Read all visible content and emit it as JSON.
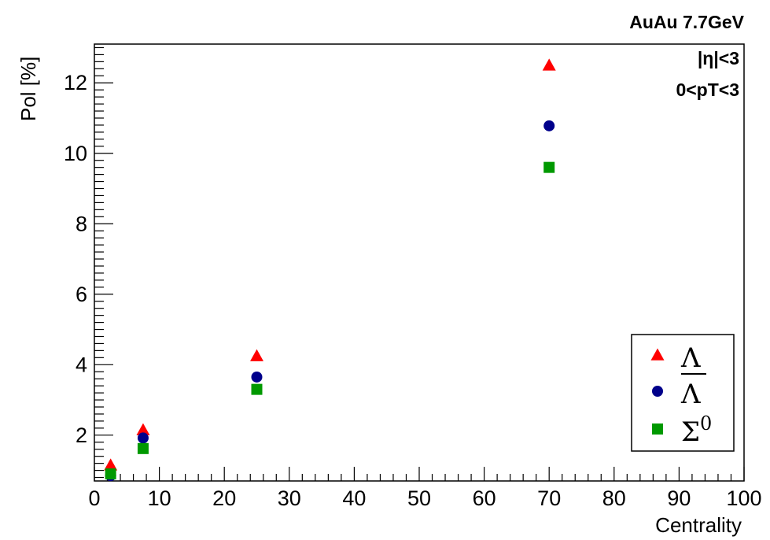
{
  "chart_data": {
    "type": "scatter",
    "title": "AuAu 7.7GeV",
    "xlabel": "Centrality",
    "ylabel": "Pol [%]",
    "xlim": [
      0,
      100
    ],
    "ylim": [
      0.7,
      13.1
    ],
    "x_ticks": [
      "0",
      "10",
      "20",
      "30",
      "40",
      "50",
      "60",
      "70",
      "80",
      "90",
      "100"
    ],
    "y_ticks": [
      "2",
      "4",
      "6",
      "8",
      "10",
      "12"
    ],
    "annotations": [
      "|η|<3",
      "0<pT<3"
    ],
    "legend_position": "bottom-right",
    "series": [
      {
        "name": "Λ",
        "overline": false,
        "marker": "triangle",
        "color": "#ff0000",
        "x": [
          2.5,
          7.5,
          25,
          70
        ],
        "y": [
          1.15,
          2.15,
          4.25,
          12.5
        ]
      },
      {
        "name": "Λ",
        "overline": true,
        "marker": "circle",
        "color": "#00008b",
        "x": [
          2.5,
          7.5,
          25,
          70
        ],
        "y": [
          0.85,
          1.92,
          3.65,
          10.78
        ]
      },
      {
        "name": "Σ0",
        "base": "Σ",
        "sup": "0",
        "overline": false,
        "marker": "square",
        "color": "#009900",
        "x": [
          2.5,
          7.5,
          25,
          70
        ],
        "y": [
          0.9,
          1.62,
          3.3,
          9.6
        ]
      }
    ]
  }
}
